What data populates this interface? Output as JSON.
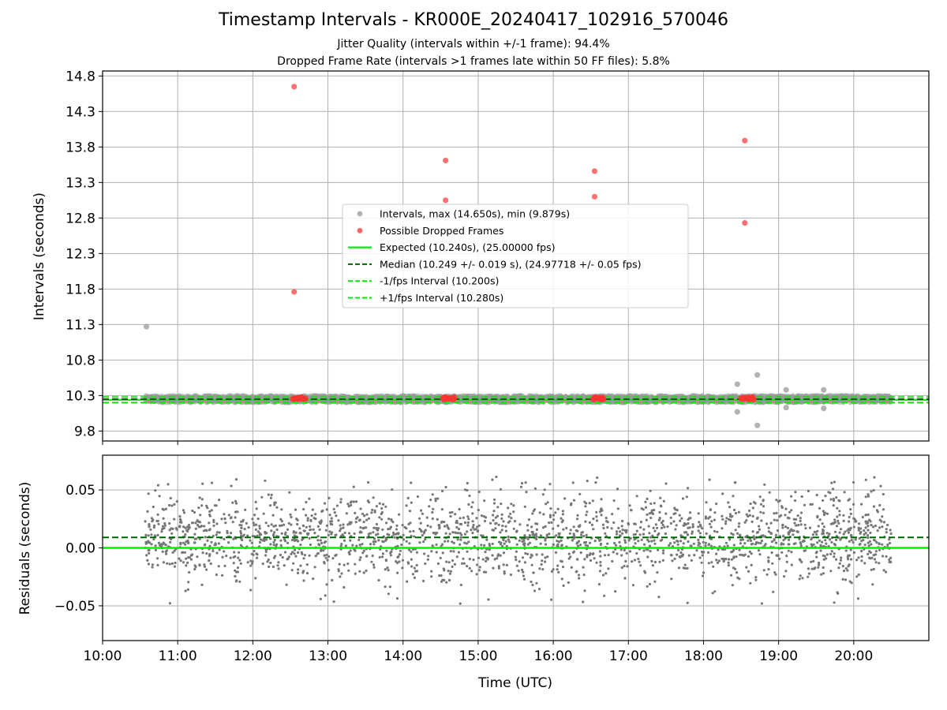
{
  "figure": {
    "title": "Timestamp Intervals - KR000E_20240417_102916_570046",
    "subtitle_1": "Jitter Quality (intervals within +/-1 frame): 94.4%",
    "subtitle_2": "Dropped Frame Rate (intervals >1 frames late within 50 FF files): 5.8%"
  },
  "colors": {
    "intervals": "#999999",
    "dropped": "#ff3333",
    "expected": "#00ee00",
    "median": "#006400",
    "residuals": "#777777",
    "grid": "#b0b0b0"
  },
  "chart_data": [
    {
      "type": "scatter",
      "ylabel": "Intervals (seconds)",
      "xlabel": "",
      "x_ticks": [
        "10:00",
        "11:00",
        "12:00",
        "13:00",
        "14:00",
        "15:00",
        "16:00",
        "17:00",
        "18:00",
        "19:00",
        "20:00"
      ],
      "y_ticks": [
        "9.8",
        "10.3",
        "10.8",
        "11.3",
        "11.8",
        "12.3",
        "12.8",
        "13.3",
        "13.8",
        "14.3",
        "14.8"
      ],
      "xlim": [
        "10:00",
        "21:00"
      ],
      "ylim": [
        9.66,
        14.87
      ],
      "grid": true,
      "legend_position": "center",
      "legend": [
        "Intervals, max (14.650s), min (9.879s)",
        "Possible Dropped Frames",
        "Expected (10.240s), (25.00000 fps)",
        "Median (10.249 +/- 0.019 s), (24.97718 +/- 0.05 fps)",
        "-1/fps Interval (10.200s)",
        "+1/fps Interval (10.280s)"
      ],
      "reference_lines": {
        "expected": 10.24,
        "median": 10.249,
        "minus_one_fps": 10.2,
        "plus_one_fps": 10.28
      },
      "interval_series": {
        "name": "Intervals, max (14.650s), min (9.879s)",
        "x_range": [
          "10:34",
          "20:30"
        ],
        "y_band": [
          10.2,
          10.3
        ],
        "point_count": 2600
      },
      "interval_outliers": [
        {
          "x": "10:35",
          "y": 11.27
        },
        {
          "x": "18:27",
          "y": 10.46
        },
        {
          "x": "18:27",
          "y": 10.07
        },
        {
          "x": "18:43",
          "y": 10.59
        },
        {
          "x": "18:43",
          "y": 9.88
        },
        {
          "x": "19:06",
          "y": 10.38
        },
        {
          "x": "19:06",
          "y": 10.13
        },
        {
          "x": "19:36",
          "y": 10.38
        },
        {
          "x": "19:36",
          "y": 10.12
        }
      ],
      "dropped_frames": [
        {
          "x": "12:33",
          "y": 14.65
        },
        {
          "x": "12:33",
          "y": 11.76
        },
        {
          "x": "14:34",
          "y": 13.61
        },
        {
          "x": "14:34",
          "y": 13.05
        },
        {
          "x": "16:33",
          "y": 13.46
        },
        {
          "x": "16:33",
          "y": 13.1
        },
        {
          "x": "18:33",
          "y": 13.89
        },
        {
          "x": "18:33",
          "y": 12.73
        }
      ],
      "dropped_clusters": [
        {
          "x_range": [
            "12:32",
            "12:42"
          ],
          "y": 10.26
        },
        {
          "x_range": [
            "14:32",
            "14:41"
          ],
          "y": 10.26
        },
        {
          "x_range": [
            "16:32",
            "16:40"
          ],
          "y": 10.26
        },
        {
          "x_range": [
            "18:30",
            "18:40"
          ],
          "y": 10.26
        }
      ]
    },
    {
      "type": "scatter",
      "ylabel": "Residuals (seconds)",
      "xlabel": "Time (UTC)",
      "x_ticks": [
        "10:00",
        "11:00",
        "12:00",
        "13:00",
        "14:00",
        "15:00",
        "16:00",
        "17:00",
        "18:00",
        "19:00",
        "20:00"
      ],
      "y_ticks": [
        "−0.05",
        "0.00",
        "0.05"
      ],
      "xlim": [
        "10:00",
        "21:00"
      ],
      "ylim": [
        -0.08,
        0.08
      ],
      "grid": true,
      "reference_lines": {
        "zero": 0.0,
        "median_offset": 0.009
      },
      "residual_series": {
        "x_range": [
          "10:34",
          "20:30"
        ],
        "y_range": [
          -0.052,
          0.062
        ],
        "center": 0.009,
        "spread": 0.019,
        "point_count": 2200
      }
    }
  ]
}
